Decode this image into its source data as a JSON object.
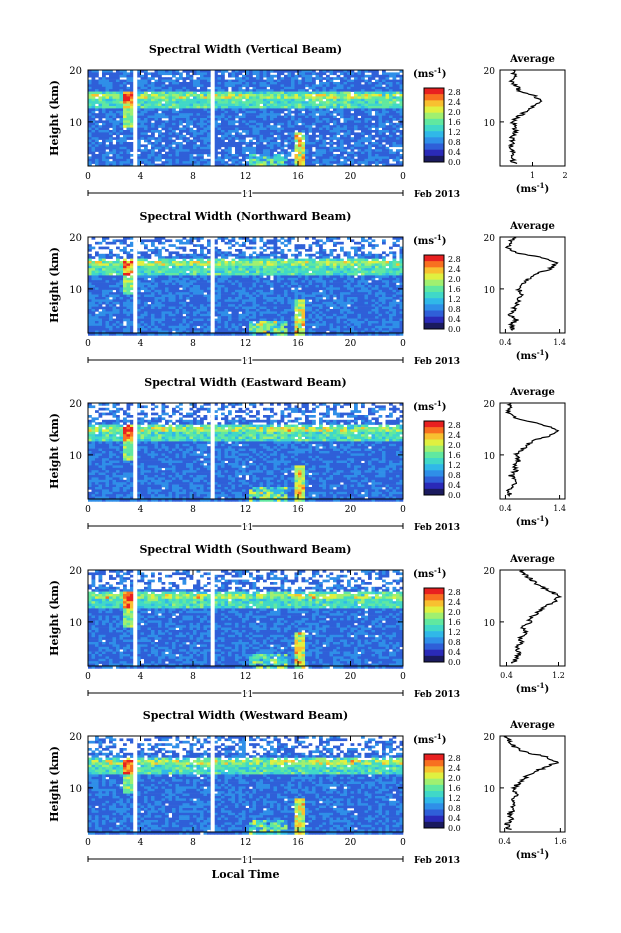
{
  "figure": {
    "time_label": "Local Time",
    "date_label": "Feb 2013",
    "day_label": "11",
    "unit_label": "(ms",
    "unit_exp": "-1",
    "unit_close": ")",
    "average_title": "Average",
    "colormap": [
      "#1a1a5e",
      "#2a2ab8",
      "#2f5fd8",
      "#2f8fe8",
      "#30b8e8",
      "#40d8c8",
      "#60e8a0",
      "#a0f070",
      "#e0f040",
      "#f8c030",
      "#f87020",
      "#e82020"
    ]
  },
  "chart_data": [
    {
      "type": "heatmap",
      "title": "Spectral Width (Vertical Beam)",
      "ylabel": "Height (km)",
      "xlabel": "Local Time",
      "x_ticks": [
        "0",
        "4",
        "8",
        "12",
        "16",
        "20",
        "0"
      ],
      "y_ticks": [
        "20",
        "10"
      ],
      "ylim": [
        1.5,
        20
      ],
      "xlim": [
        0,
        24
      ],
      "colorbar_ticks": [
        "2.8",
        "2.4",
        "2.0",
        "1.6",
        "1.2",
        "0.8",
        "0.4",
        "0.0"
      ],
      "data_gaps_hours": [
        3.6,
        9.5
      ],
      "profile": {
        "xlabel": "(ms-1)",
        "x_ticks": [
          "1",
          "2"
        ],
        "xlim": [
          0,
          2
        ],
        "y_ticks": [
          "20",
          "10"
        ],
        "heights": [
          2,
          3,
          4,
          5,
          6,
          7,
          8,
          9,
          10,
          11,
          12,
          13,
          14,
          15,
          16,
          17,
          18,
          19,
          20
        ],
        "values": [
          0.45,
          0.35,
          0.45,
          0.35,
          0.4,
          0.35,
          0.5,
          0.45,
          0.4,
          0.55,
          0.8,
          1.05,
          1.2,
          1.1,
          0.6,
          0.5,
          0.35,
          0.45,
          0.4
        ]
      }
    },
    {
      "type": "heatmap",
      "title": "Spectral Width (Northward Beam)",
      "ylabel": "Height (km)",
      "xlabel": "Local Time",
      "x_ticks": [
        "0",
        "4",
        "8",
        "12",
        "16",
        "20",
        "0"
      ],
      "y_ticks": [
        "20",
        "10"
      ],
      "ylim": [
        1.5,
        20
      ],
      "xlim": [
        0,
        24
      ],
      "colorbar_ticks": [
        "2.8",
        "2.4",
        "2.0",
        "1.6",
        "1.2",
        "0.8",
        "0.4",
        "0.0"
      ],
      "data_gaps_hours": [
        3.6,
        9.5
      ],
      "profile": {
        "xlabel": "(ms-1)",
        "x_ticks": [
          "0.4",
          "1.4"
        ],
        "xlim": [
          0.3,
          1.5
        ],
        "y_ticks": [
          "20",
          "10"
        ],
        "heights": [
          2,
          3,
          4,
          5,
          6,
          7,
          8,
          9,
          10,
          11,
          12,
          13,
          14,
          15,
          16,
          17,
          18,
          19,
          20
        ],
        "values": [
          0.55,
          0.5,
          0.6,
          0.5,
          0.55,
          0.6,
          0.65,
          0.7,
          0.65,
          0.7,
          0.85,
          1.0,
          1.25,
          1.35,
          1.1,
          0.6,
          0.45,
          0.5,
          0.55
        ]
      }
    },
    {
      "type": "heatmap",
      "title": "Spectral Width (Eastward Beam)",
      "ylabel": "Height (km)",
      "xlabel": "Local Time",
      "x_ticks": [
        "0",
        "4",
        "8",
        "12",
        "16",
        "20",
        "0"
      ],
      "y_ticks": [
        "20",
        "10"
      ],
      "ylim": [
        1.5,
        20
      ],
      "xlim": [
        0,
        24
      ],
      "colorbar_ticks": [
        "2.8",
        "2.4",
        "2.0",
        "1.6",
        "1.2",
        "0.8",
        "0.4",
        "0.0"
      ],
      "data_gaps_hours": [
        3.6,
        9.5
      ],
      "profile": {
        "xlabel": "(ms-1)",
        "x_ticks": [
          "0.4",
          "1.4"
        ],
        "xlim": [
          0.3,
          1.5
        ],
        "y_ticks": [
          "20",
          "10"
        ],
        "heights": [
          2,
          3,
          4,
          5,
          6,
          7,
          8,
          9,
          10,
          11,
          12,
          13,
          14,
          15,
          16,
          17,
          18,
          19,
          20
        ],
        "values": [
          0.5,
          0.45,
          0.55,
          0.6,
          0.5,
          0.6,
          0.55,
          0.65,
          0.6,
          0.7,
          0.8,
          1.0,
          1.3,
          1.35,
          1.0,
          0.6,
          0.45,
          0.5,
          0.5
        ]
      }
    },
    {
      "type": "heatmap",
      "title": "Spectral Width (Southward Beam)",
      "ylabel": "Height (km)",
      "xlabel": "Local Time",
      "x_ticks": [
        "0",
        "4",
        "8",
        "12",
        "16",
        "20",
        "0"
      ],
      "y_ticks": [
        "20",
        "10"
      ],
      "ylim": [
        1.5,
        20
      ],
      "xlim": [
        0,
        24
      ],
      "colorbar_ticks": [
        "2.8",
        "2.4",
        "2.0",
        "1.6",
        "1.2",
        "0.8",
        "0.4",
        "0.0"
      ],
      "data_gaps_hours": [
        3.6,
        9.5
      ],
      "profile": {
        "xlabel": "(ms-1)",
        "x_ticks": [
          "0.4",
          "1.2"
        ],
        "xlim": [
          0.3,
          1.3
        ],
        "y_ticks": [
          "20",
          "10"
        ],
        "heights": [
          2,
          3,
          4,
          5,
          6,
          7,
          8,
          9,
          10,
          11,
          12,
          13,
          14,
          15,
          16,
          17,
          18,
          19,
          20
        ],
        "values": [
          0.5,
          0.55,
          0.6,
          0.55,
          0.65,
          0.6,
          0.7,
          0.65,
          0.75,
          0.8,
          0.9,
          1.0,
          1.15,
          1.2,
          1.05,
          0.9,
          0.8,
          0.7,
          0.6
        ]
      }
    },
    {
      "type": "heatmap",
      "title": "Spectral Width (Westward Beam)",
      "ylabel": "Height (km)",
      "xlabel": "Local Time",
      "x_ticks": [
        "0",
        "4",
        "8",
        "12",
        "16",
        "20",
        "0"
      ],
      "y_ticks": [
        "20",
        "10"
      ],
      "ylim": [
        1.5,
        20
      ],
      "xlim": [
        0,
        24
      ],
      "colorbar_ticks": [
        "2.8",
        "2.4",
        "2.0",
        "1.6",
        "1.2",
        "0.8",
        "0.4",
        "0.0"
      ],
      "data_gaps_hours": [
        3.6,
        9.5
      ],
      "profile": {
        "xlabel": "(ms-1)",
        "x_ticks": [
          "0.4",
          "1.6"
        ],
        "xlim": [
          0.3,
          1.7
        ],
        "y_ticks": [
          "20",
          "10"
        ],
        "heights": [
          2,
          3,
          4,
          5,
          6,
          7,
          8,
          9,
          10,
          11,
          12,
          13,
          14,
          15,
          16,
          17,
          18,
          19,
          20
        ],
        "values": [
          0.5,
          0.45,
          0.55,
          0.5,
          0.6,
          0.55,
          0.6,
          0.65,
          0.6,
          0.7,
          0.85,
          1.0,
          1.3,
          1.55,
          1.3,
          0.8,
          0.6,
          0.5,
          0.45
        ]
      }
    }
  ]
}
